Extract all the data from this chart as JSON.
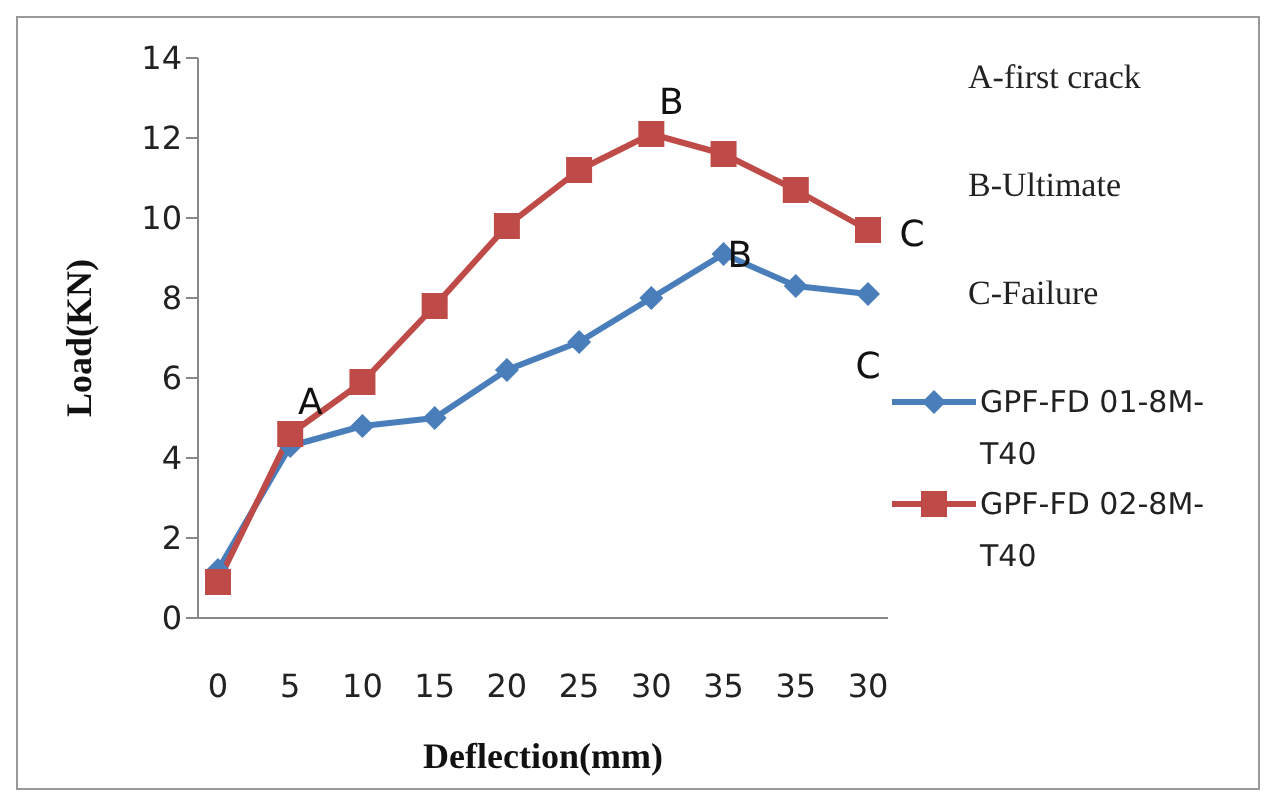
{
  "chart_data": {
    "type": "line",
    "xlabel": "Deflection(mm)",
    "ylabel": "Load(KN)",
    "categories": [
      "0",
      "5",
      "10",
      "15",
      "20",
      "25",
      "30",
      "35",
      "35",
      "30"
    ],
    "series": [
      {
        "name": "GPF-FD 01-8M-T40",
        "color": "#4a7ebb",
        "marker": "diamond",
        "values": [
          1.2,
          4.3,
          4.8,
          5.0,
          6.2,
          6.9,
          8.0,
          9.1,
          8.3,
          8.1
        ]
      },
      {
        "name": "GPF-FD 02-8M-T40",
        "color": "#be4b48",
        "marker": "square",
        "values": [
          0.9,
          4.6,
          5.9,
          7.8,
          9.8,
          11.2,
          12.1,
          11.6,
          10.7,
          9.7
        ]
      }
    ],
    "ylim": [
      0,
      14
    ],
    "yticks": [
      0,
      2,
      4,
      6,
      8,
      10,
      12,
      14
    ],
    "grid": false,
    "legend": "right",
    "annotations": [
      {
        "text": "A",
        "x": "5",
        "y": 4.6
      },
      {
        "text": "B",
        "x": "30",
        "y": 12.1
      },
      {
        "text": "B",
        "x": "35",
        "y": 9.1
      },
      "C",
      "C",
      "A-first crack",
      "B-Ultimate",
      "C-Failure"
    ]
  }
}
